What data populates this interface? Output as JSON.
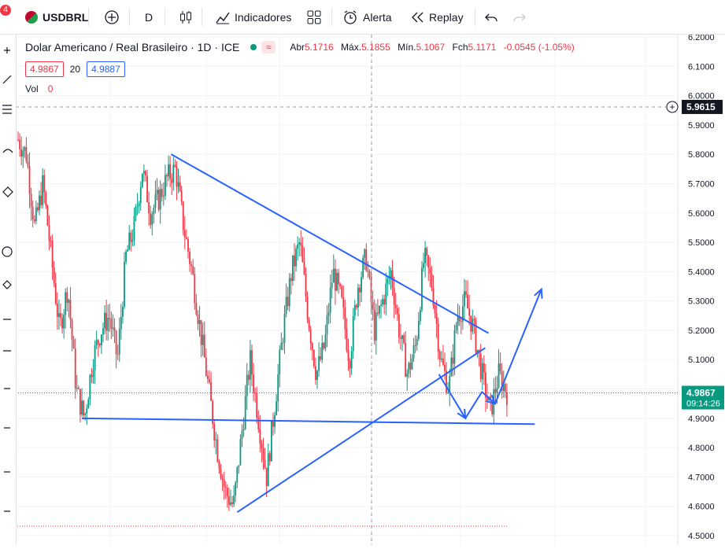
{
  "toolbar": {
    "notification_count": "4",
    "symbol": "USDBRL",
    "interval": "D",
    "indicators_label": "Indicadores",
    "alert_label": "Alerta",
    "replay_label": "Replay"
  },
  "legend": {
    "title": "Dolar Americano / Real Brasileiro · 1D · ICE",
    "open_label": "Abr",
    "open": "5.1716",
    "high_label": "Máx.",
    "high": "5.1855",
    "low_label": "Mín.",
    "low": "5.1067",
    "close_label": "Fch",
    "close": "5.1171",
    "change": "-0.0545 (-1.05%)",
    "bid": "4.9867",
    "spread": "20",
    "ask": "4.9887",
    "volume_label": "Vol",
    "volume": "0"
  },
  "colors": {
    "up": "#089981",
    "down": "#f23645",
    "drawing": "#2962ff",
    "price_badge": "#089981",
    "crosshair_badge": "#131722"
  },
  "chart_data": {
    "type": "candlestick",
    "title": "Dolar Americano / Real Brasileiro · 1D · ICE",
    "y_axis": {
      "ticks": [
        "6.2000",
        "6.1000",
        "6.0000",
        "5.9000",
        "5.8000",
        "5.7000",
        "5.6000",
        "5.5000",
        "5.4000",
        "5.3000",
        "5.2000",
        "5.1000",
        "5.0000",
        "4.9000",
        "4.8000",
        "4.7000",
        "4.6000",
        "4.5000"
      ],
      "range": [
        4.5,
        6.2
      ]
    },
    "current_price": {
      "value": "4.9867",
      "countdown": "09:14:26"
    },
    "crosshair_price": "5.9615",
    "price_path": [
      5.85,
      5.8,
      5.55,
      5.7,
      5.45,
      5.2,
      5.35,
      5.0,
      4.9,
      5.1,
      5.2,
      5.25,
      5.1,
      5.45,
      5.55,
      5.75,
      5.6,
      5.65,
      5.72,
      5.75,
      5.55,
      5.4,
      5.2,
      5.0,
      4.8,
      4.65,
      4.6,
      4.85,
      5.1,
      4.9,
      4.7,
      4.95,
      5.2,
      5.4,
      5.5,
      5.25,
      5.05,
      5.15,
      5.4,
      5.3,
      5.1,
      5.35,
      5.45,
      5.2,
      5.3,
      5.4,
      5.2,
      5.05,
      5.15,
      5.45,
      5.35,
      5.1,
      5.0,
      5.25,
      5.3,
      5.2,
      5.05,
      4.92,
      5.05,
      4.99
    ],
    "annotations": [
      {
        "type": "trendline",
        "from": [
          0.235,
          5.8
        ],
        "to": [
          0.715,
          5.19
        ]
      },
      {
        "type": "trendline",
        "from": [
          0.335,
          4.58
        ],
        "to": [
          0.71,
          5.14
        ]
      },
      {
        "type": "trendline",
        "from": [
          0.1,
          4.9
        ],
        "to": [
          0.785,
          4.88
        ]
      },
      {
        "type": "projection_path",
        "points": [
          [
            0.64,
            5.05
          ],
          [
            0.68,
            4.9
          ],
          [
            0.705,
            4.99
          ],
          [
            0.725,
            4.95
          ],
          [
            0.795,
            5.34
          ]
        ]
      }
    ]
  }
}
